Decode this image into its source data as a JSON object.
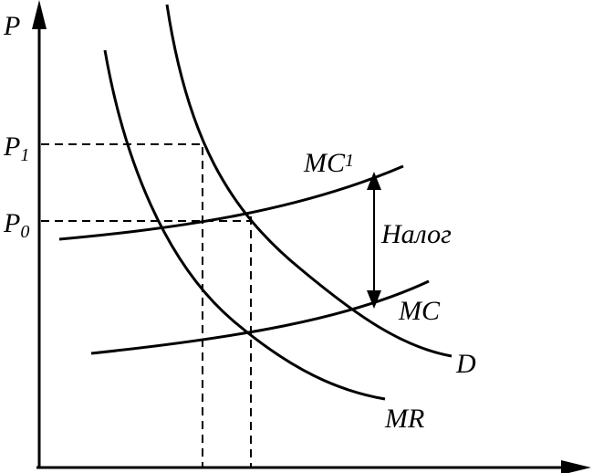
{
  "axes": {
    "y_label": "P"
  },
  "prices": [
    {
      "text": "P",
      "subscript": "1"
    },
    {
      "text": "P",
      "subscript": "0"
    }
  ],
  "curves": [
    {
      "text": "MC",
      "subscript": "1"
    },
    {
      "text": "MC"
    },
    {
      "text": "D"
    },
    {
      "text": "MR"
    }
  ],
  "tax_label": "Налог"
}
